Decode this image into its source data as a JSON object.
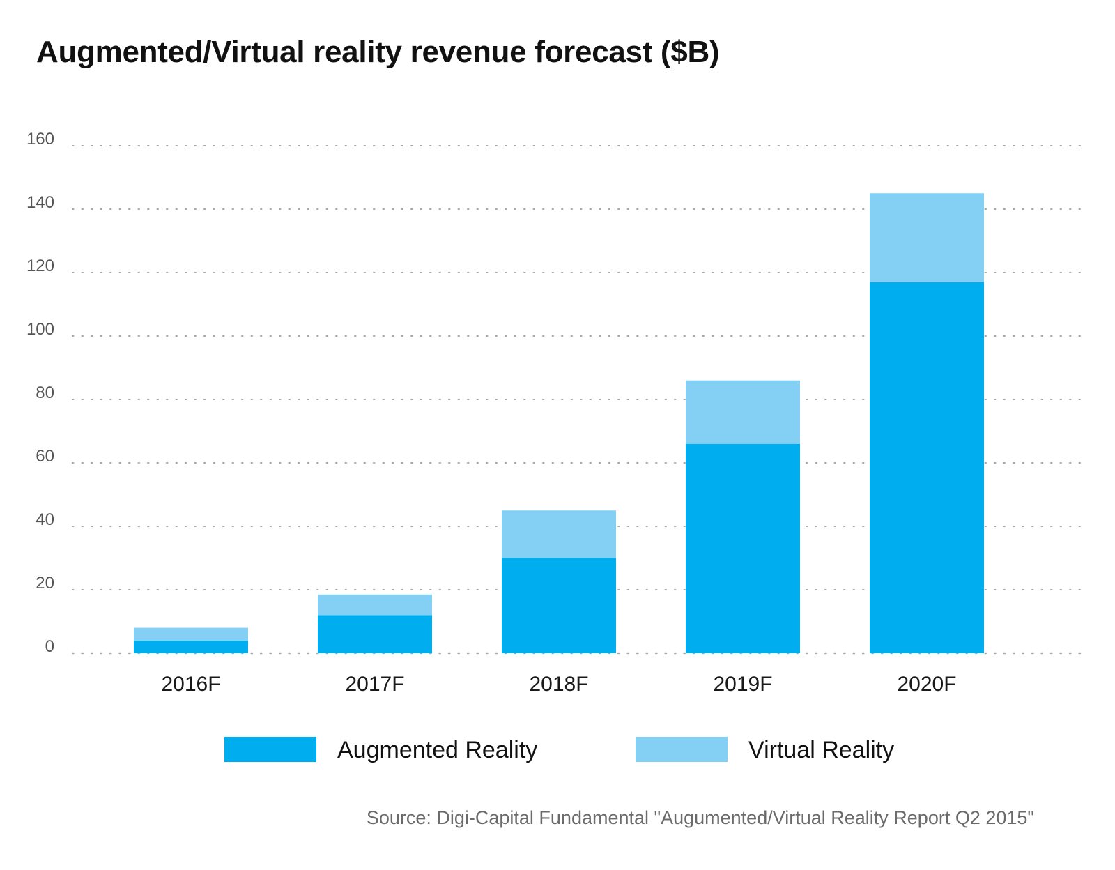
{
  "chart_data": {
    "type": "bar",
    "stacked": true,
    "title": "Augmented/Virtual reality revenue forecast ($B)",
    "xlabel": "",
    "ylabel": "",
    "categories": [
      "2016F",
      "2017F",
      "2018F",
      "2019F",
      "2020F"
    ],
    "series": [
      {
        "name": "Augmented Reality",
        "color": "#00aeef",
        "values": [
          4,
          12,
          30,
          66,
          117
        ]
      },
      {
        "name": "Virtual Reality",
        "color": "#84d0f5",
        "values": [
          4,
          6.5,
          15,
          20,
          28
        ]
      }
    ],
    "ylim": [
      0,
      160
    ],
    "yticks": [
      0,
      20,
      40,
      60,
      80,
      100,
      120,
      140,
      160
    ],
    "grid": "dotted horizontal",
    "legend_position": "bottom"
  },
  "source": "Source: Digi-Capital Fundamental \"Augumented/Virtual Reality Report Q2 2015\"",
  "colors": {
    "grid": "#a8a8a8",
    "axis_text": "#555555",
    "tick_text": "#1a1a1a"
  }
}
